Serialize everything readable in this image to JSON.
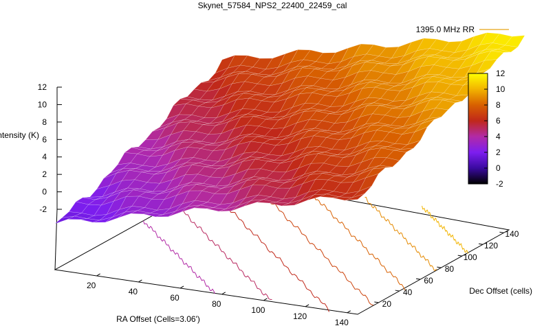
{
  "chart_data": {
    "type": "surface3d",
    "title": "Skynet_57584_NPS2_22400_22459_cal",
    "zlabel": "Intensity (K)",
    "xlabel": "RA Offset (Cells=3.06')",
    "ylabel": "Dec Offset (cells)",
    "legend": {
      "position": "top-right",
      "entries": [
        {
          "name": "1395.0 MHz RR",
          "color": "#e8a317"
        }
      ]
    },
    "x_ticks": [
      "20",
      "40",
      "60",
      "80",
      "100",
      "120",
      "140"
    ],
    "y_ticks": [
      "20",
      "40",
      "60",
      "80",
      "100",
      "120",
      "140"
    ],
    "z_ticks": [
      "12",
      "10",
      "8",
      "6",
      "4",
      "2",
      "0",
      "-2"
    ],
    "zlim": [
      -2,
      12
    ],
    "colorbar": {
      "ticks": [
        "12",
        "10",
        "8",
        "6",
        "4",
        "2",
        "0",
        "-2"
      ],
      "range": [
        -2,
        12
      ],
      "palette": [
        "#000000",
        "#3a0aa0",
        "#7d1ef0",
        "#b22aa6",
        "#c0281a",
        "#d86000",
        "#f2b400",
        "#ffff00"
      ]
    },
    "contour_levels": [
      4,
      5,
      6,
      7,
      8,
      9,
      10
    ],
    "surface": {
      "ra_range": [
        0,
        145
      ],
      "dec_range": [
        0,
        145
      ],
      "intensity_range": [
        1,
        12
      ],
      "gradient": "increases with RA and Dec"
    }
  }
}
